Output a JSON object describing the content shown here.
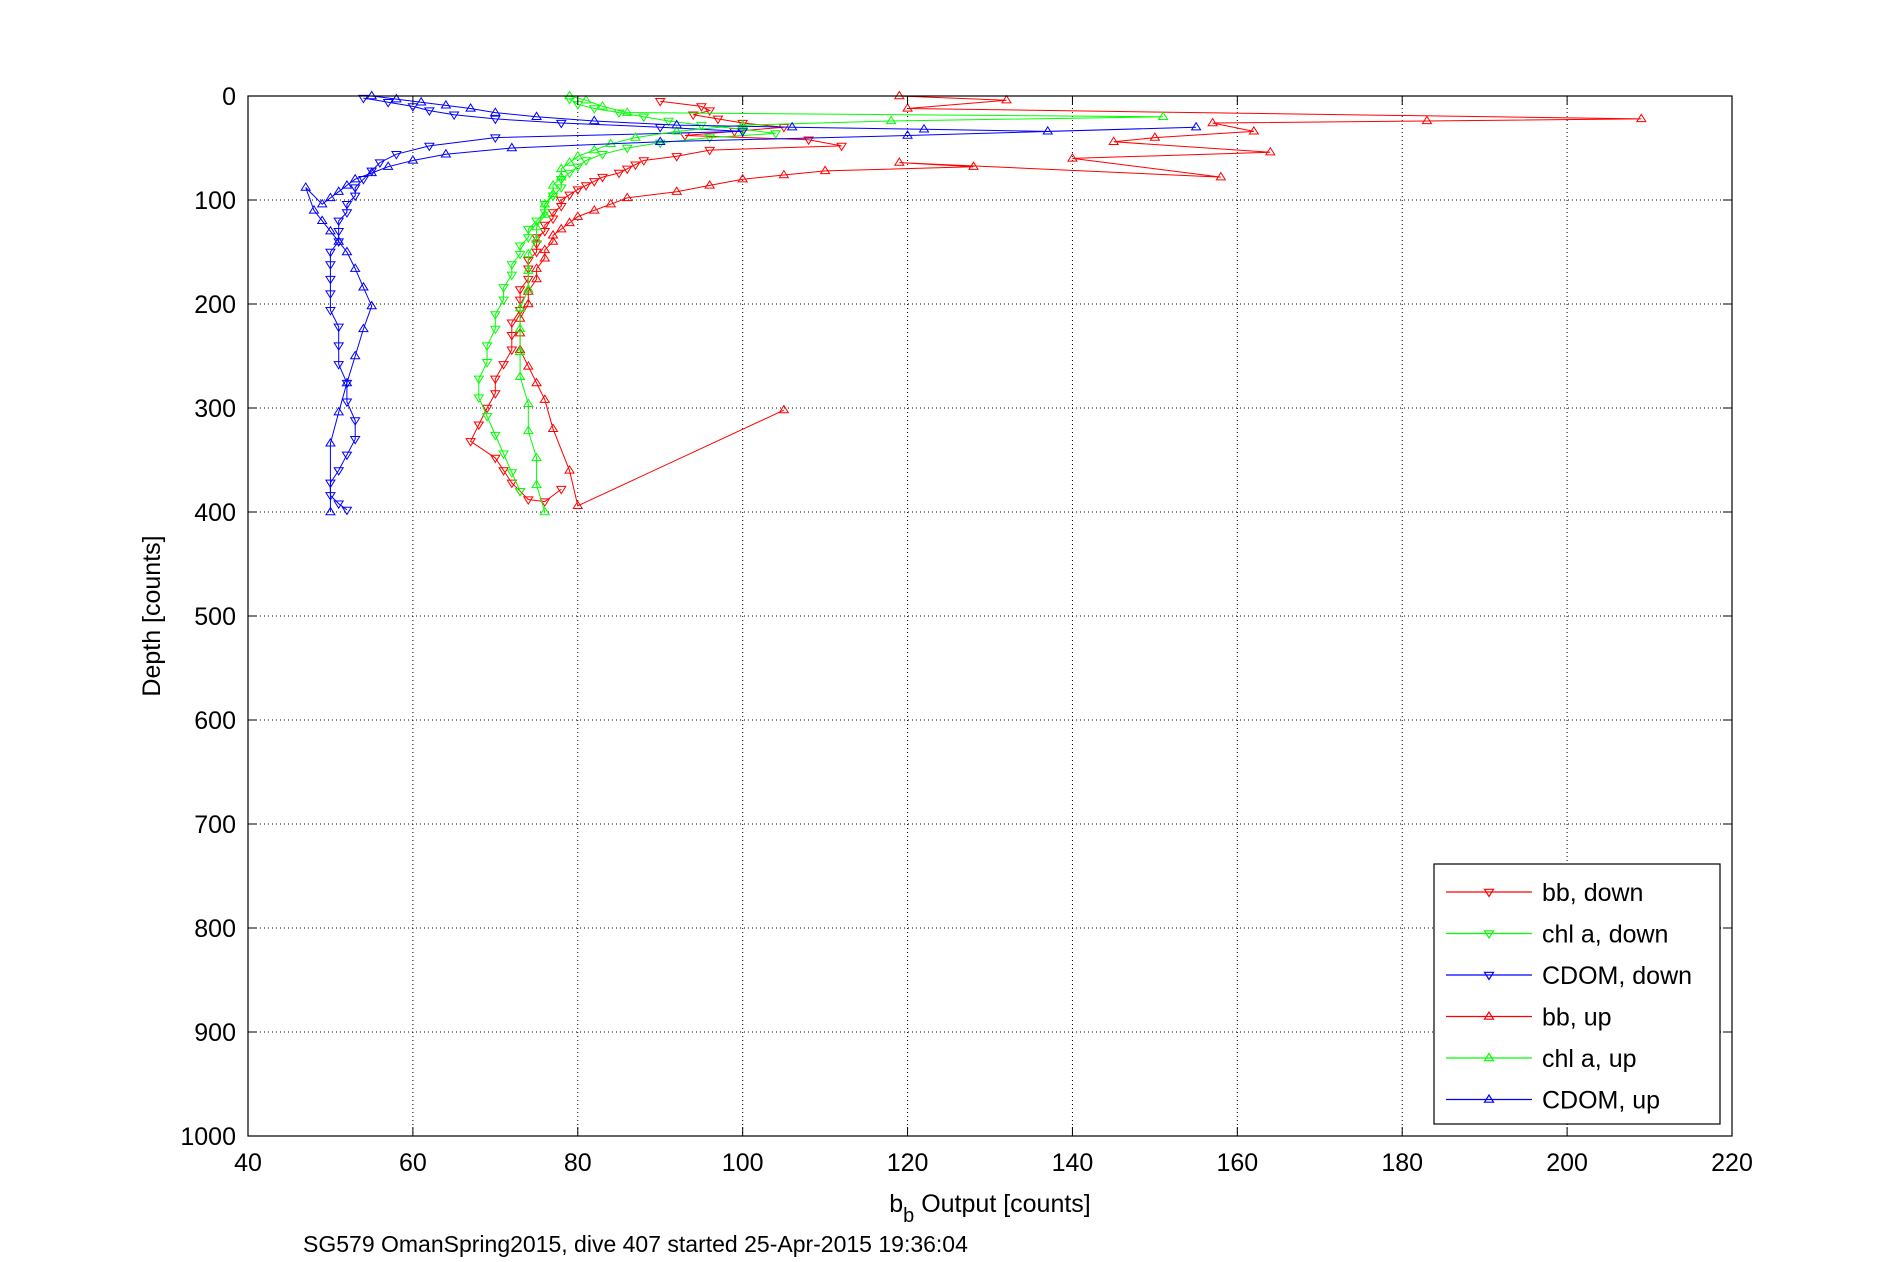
{
  "chart_data": {
    "type": "scatter",
    "title": "",
    "xlabel_main": "b",
    "xlabel_sub": "b",
    "xlabel_rest": " Output [counts]",
    "ylabel": "Depth [counts]",
    "caption": "SG579 OmanSpring2015, dive 407 started 25-Apr-2015 19:36:04",
    "xlim": [
      40,
      220
    ],
    "ylim": [
      0,
      1000
    ],
    "y_reversed": true,
    "grid": true,
    "grid_style": "dotted",
    "legend_position": "bottom-right",
    "x_ticks": [
      "40",
      "60",
      "80",
      "100",
      "120",
      "140",
      "160",
      "180",
      "200",
      "220"
    ],
    "y_ticks": [
      "0",
      "100",
      "200",
      "300",
      "400",
      "500",
      "600",
      "700",
      "800",
      "900",
      "1000"
    ],
    "series": [
      {
        "name": "bb, down",
        "color": "#ff0000",
        "marker": "triangle-down",
        "x": [
          90,
          95,
          96,
          94,
          97,
          100,
          105,
          99,
          93,
          108,
          112,
          96,
          92,
          88,
          87,
          86,
          85,
          83,
          82,
          81,
          80,
          79,
          78,
          78,
          77,
          77,
          76,
          76,
          75,
          75,
          75,
          74,
          74,
          74,
          73,
          73,
          73,
          72,
          72,
          72,
          71,
          70,
          70,
          69,
          68,
          67,
          70,
          71,
          72,
          73,
          74,
          76,
          78
        ],
        "y": [
          5,
          10,
          14,
          18,
          22,
          26,
          30,
          34,
          38,
          42,
          48,
          52,
          58,
          62,
          66,
          70,
          74,
          78,
          82,
          86,
          90,
          95,
          100,
          106,
          112,
          118,
          124,
          130,
          136,
          142,
          150,
          158,
          166,
          176,
          186,
          196,
          206,
          218,
          230,
          244,
          258,
          272,
          286,
          300,
          316,
          332,
          348,
          360,
          372,
          380,
          388,
          390,
          378
        ]
      },
      {
        "name": "chl a, down",
        "color": "#00ff00",
        "marker": "triangle-down",
        "x": [
          79,
          80,
          82,
          85,
          88,
          91,
          95,
          100,
          104,
          96,
          90,
          86,
          83,
          81,
          80,
          79,
          78,
          78,
          77,
          76,
          76,
          75,
          74,
          74,
          73,
          73,
          72,
          72,
          71,
          71,
          70,
          70,
          69,
          69,
          68,
          68,
          69,
          70,
          71,
          72,
          73
        ],
        "y": [
          3,
          8,
          12,
          16,
          20,
          24,
          28,
          32,
          36,
          40,
          45,
          50,
          56,
          62,
          68,
          74,
          80,
          88,
          96,
          104,
          112,
          120,
          128,
          136,
          144,
          152,
          162,
          172,
          184,
          196,
          210,
          224,
          240,
          256,
          272,
          290,
          308,
          326,
          344,
          362,
          380
        ]
      },
      {
        "name": "CDOM, down",
        "color": "#0000ff",
        "marker": "triangle-down",
        "x": [
          54,
          57,
          60,
          62,
          65,
          70,
          78,
          90,
          100,
          70,
          62,
          58,
          56,
          55,
          54,
          53,
          53,
          52,
          52,
          51,
          51,
          51,
          50,
          50,
          50,
          50,
          50,
          51,
          51,
          51,
          52,
          52,
          53,
          53,
          52,
          51,
          50,
          50,
          51,
          52
        ],
        "y": [
          2,
          6,
          10,
          14,
          18,
          22,
          26,
          30,
          34,
          40,
          48,
          56,
          64,
          72,
          80,
          88,
          96,
          104,
          112,
          120,
          130,
          140,
          150,
          162,
          176,
          190,
          206,
          222,
          240,
          258,
          276,
          294,
          312,
          330,
          345,
          360,
          372,
          384,
          392,
          398
        ]
      },
      {
        "name": "bb, up",
        "color": "#ff0000",
        "marker": "triangle-up",
        "x": [
          119,
          132,
          120,
          209,
          183,
          157,
          162,
          150,
          145,
          164,
          140,
          158,
          119,
          128,
          110,
          105,
          100,
          96,
          92,
          86,
          84,
          82,
          80,
          79,
          78,
          77,
          77,
          76,
          76,
          75,
          75,
          74,
          74,
          73,
          73,
          73,
          74,
          75,
          76,
          77,
          79,
          80,
          105
        ],
        "y": [
          0,
          4,
          12,
          22,
          24,
          26,
          34,
          40,
          44,
          54,
          60,
          78,
          64,
          68,
          72,
          76,
          80,
          86,
          92,
          98,
          104,
          110,
          116,
          122,
          128,
          134,
          140,
          148,
          156,
          166,
          176,
          188,
          200,
          214,
          228,
          244,
          260,
          276,
          292,
          320,
          360,
          394,
          302
        ]
      },
      {
        "name": "chl a, up",
        "color": "#00ff00",
        "marker": "triangle-up",
        "x": [
          79,
          81,
          83,
          86,
          151,
          118,
          100,
          92,
          87,
          84,
          82,
          80,
          79,
          78,
          78,
          77,
          77,
          76,
          76,
          75,
          75,
          74,
          74,
          74,
          73,
          73,
          73,
          73,
          74,
          74,
          75,
          75,
          76
        ],
        "y": [
          0,
          4,
          10,
          16,
          20,
          24,
          28,
          34,
          40,
          46,
          52,
          58,
          64,
          70,
          78,
          86,
          94,
          104,
          114,
          126,
          138,
          152,
          168,
          186,
          204,
          224,
          246,
          270,
          296,
          322,
          348,
          374,
          400
        ]
      },
      {
        "name": "CDOM, up",
        "color": "#0000ff",
        "marker": "triangle-up",
        "x": [
          55,
          58,
          61,
          64,
          67,
          70,
          75,
          82,
          92,
          106,
          122,
          137,
          155,
          120,
          90,
          72,
          64,
          60,
          57,
          55,
          53,
          52,
          51,
          50,
          49,
          47,
          48,
          49,
          50,
          51,
          52,
          53,
          54,
          55,
          54,
          53,
          52,
          51,
          50,
          50
        ],
        "y": [
          0,
          3,
          6,
          9,
          12,
          16,
          20,
          24,
          28,
          30,
          32,
          34,
          30,
          38,
          44,
          50,
          56,
          62,
          68,
          74,
          80,
          86,
          92,
          98,
          104,
          88,
          110,
          120,
          130,
          140,
          150,
          166,
          184,
          202,
          224,
          250,
          276,
          304,
          334,
          400
        ]
      }
    ]
  }
}
